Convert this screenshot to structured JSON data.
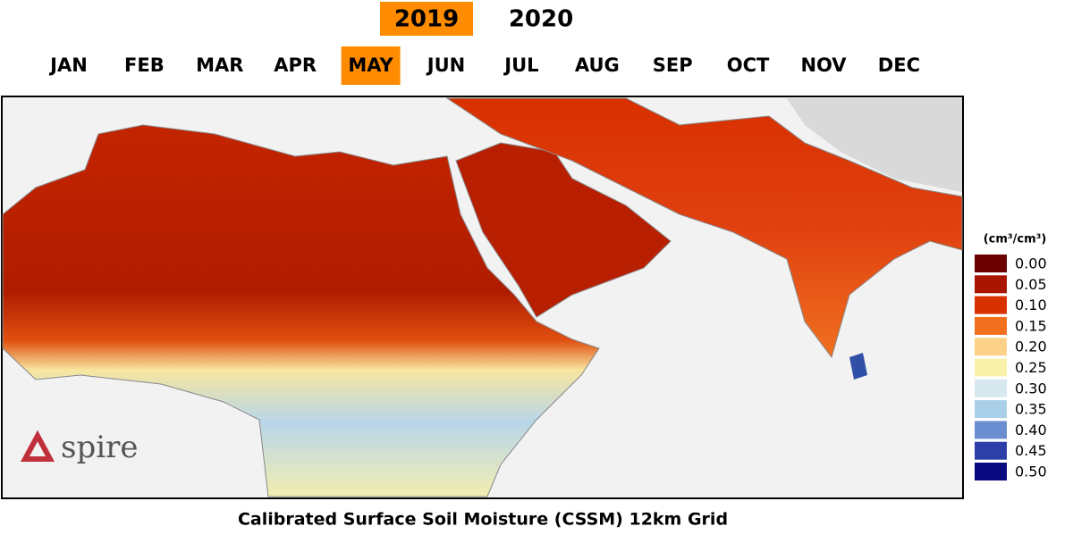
{
  "header": {
    "years": [
      {
        "label": "2019",
        "selected": true
      },
      {
        "label": "2020",
        "selected": false
      }
    ],
    "months": [
      {
        "label": "JAN",
        "selected": false
      },
      {
        "label": "FEB",
        "selected": false
      },
      {
        "label": "MAR",
        "selected": false
      },
      {
        "label": "APR",
        "selected": false
      },
      {
        "label": "MAY",
        "selected": true
      },
      {
        "label": "JUN",
        "selected": false
      },
      {
        "label": "JUL",
        "selected": false
      },
      {
        "label": "AUG",
        "selected": false
      },
      {
        "label": "SEP",
        "selected": false
      },
      {
        "label": "OCT",
        "selected": false
      },
      {
        "label": "NOV",
        "selected": false
      },
      {
        "label": "DEC",
        "selected": false
      }
    ],
    "highlight_color": "#ff8c00"
  },
  "legend": {
    "unit": "(cm³/cm³)",
    "items": [
      {
        "label": "0.00",
        "color": "#6b0000"
      },
      {
        "label": "0.05",
        "color": "#a81500"
      },
      {
        "label": "0.10",
        "color": "#d93000"
      },
      {
        "label": "0.15",
        "color": "#f07020"
      },
      {
        "label": "0.20",
        "color": "#fcd28a"
      },
      {
        "label": "0.25",
        "color": "#f7f2a8"
      },
      {
        "label": "0.30",
        "color": "#d7e8ef"
      },
      {
        "label": "0.35",
        "color": "#a9d0e8"
      },
      {
        "label": "0.40",
        "color": "#6a8ed0"
      },
      {
        "label": "0.45",
        "color": "#2e3ea8"
      },
      {
        "label": "0.50",
        "color": "#0a0a80"
      }
    ]
  },
  "logo": "spire",
  "title": "Calibrated Surface Soil Moisture (CSSM) 12km Grid"
}
